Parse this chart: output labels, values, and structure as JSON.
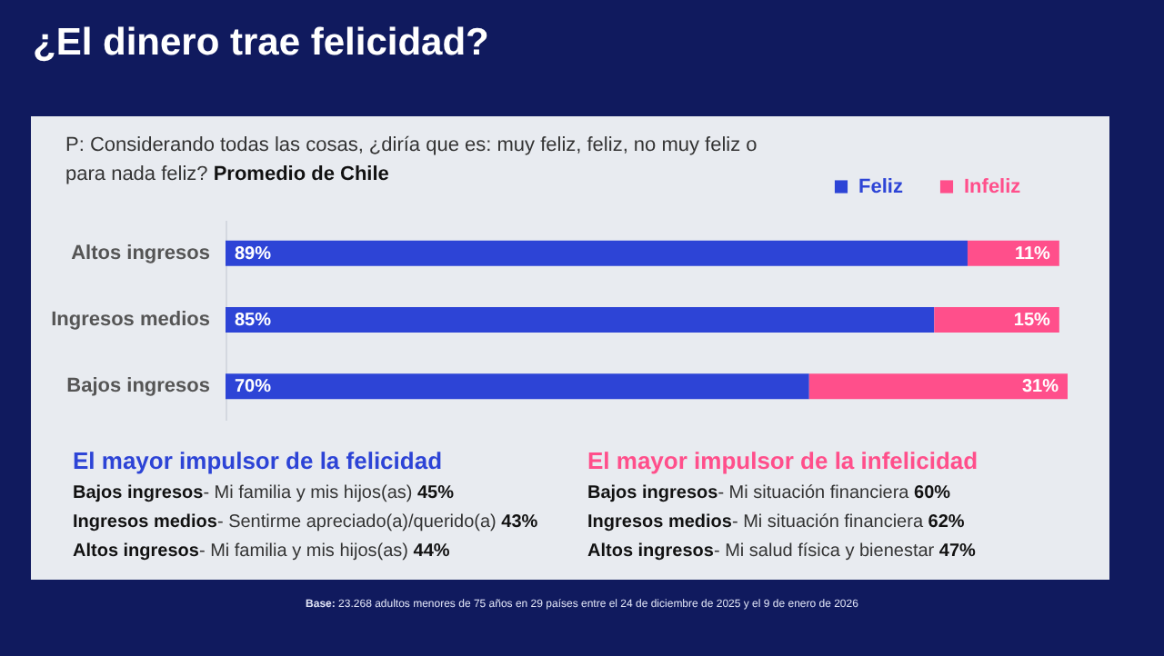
{
  "chart_data": {
    "type": "bar",
    "orientation": "horizontal",
    "stacked": true,
    "title": "¿El dinero trae felicidad?",
    "subtitle": "P: Considerando todas las cosas, ¿diría que es: muy feliz, feliz, no muy feliz o para nada feliz? Promedio de Chile",
    "categories": [
      "Altos ingresos",
      "Ingresos medios",
      "Bajos ingresos"
    ],
    "series": [
      {
        "name": "Feliz",
        "color": "#2d44d6",
        "values": [
          89,
          85,
          70
        ],
        "value_labels": [
          "89%",
          "85%",
          "70%"
        ]
      },
      {
        "name": "Infeliz",
        "color": "#ff4f8b",
        "values": [
          11,
          15,
          31
        ],
        "value_labels": [
          "11%",
          "15%",
          "31%"
        ]
      }
    ],
    "legend": "top right",
    "annotations": [
      "El mayor impulsor de la felicidad",
      "Bajos ingresos- Mi familia y mis hijos(as) 45%",
      "Ingresos medios- Sentirme apreciado(a)/querido(a) 43%",
      "Altos ingresos- Mi familia y mis hijos(as) 44%",
      "El mayor impulsor de la infelicidad",
      "Bajos ingresos- Mi situación financiera 60%",
      "Ingresos medios- Mi situación financiera 62%",
      "Altos ingresos- Mi salud física y bienestar 47%",
      "Base: 23.268 adultos menores de 75 años en 29 países entre el 24 de diciembre de 2025 y el 9 de enero de 2026"
    ]
  }
}
